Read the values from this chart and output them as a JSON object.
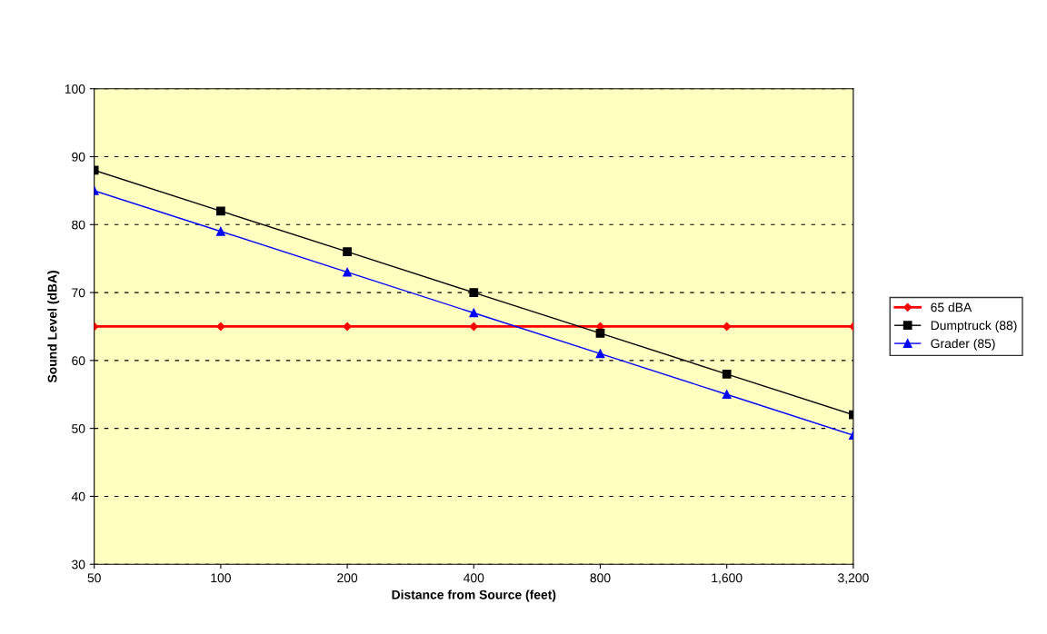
{
  "chart_data": {
    "type": "line",
    "xlabel": "Distance from Source (feet)",
    "ylabel": "Sound Level (dBA)",
    "categories": [
      "50",
      "100",
      "200",
      "400",
      "800",
      "1,600",
      "3,200"
    ],
    "series": [
      {
        "name": "65 dBA",
        "color": "#ff0000",
        "marker": "diamond",
        "values": [
          65,
          65,
          65,
          65,
          65,
          65,
          65
        ]
      },
      {
        "name": "Dumptruck (88)",
        "color": "#000000",
        "marker": "square",
        "values": [
          88,
          82,
          76,
          70,
          64,
          58,
          52
        ]
      },
      {
        "name": "Grader (85)",
        "color": "#0000ff",
        "marker": "triangle",
        "values": [
          85,
          79,
          73,
          67,
          61,
          55,
          49
        ]
      }
    ],
    "ylim": [
      30,
      100
    ],
    "yticks": [
      30,
      40,
      50,
      60,
      70,
      80,
      90,
      100
    ],
    "grid": "y",
    "legend": "right"
  }
}
